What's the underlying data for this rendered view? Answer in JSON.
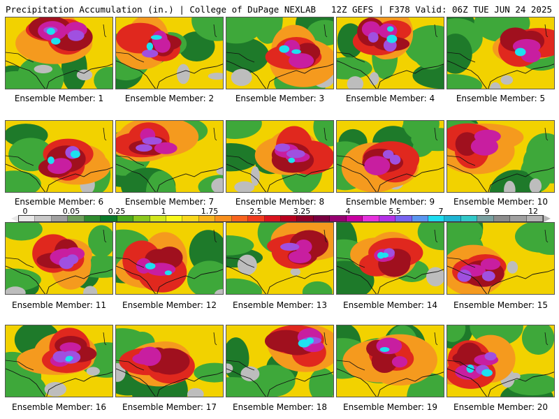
{
  "header": {
    "left": "Precipitation Accumulation (in.) | College of DuPage NEXLAB",
    "right": "12Z GEFS | F378 Valid: 06Z TUE JUN 24 2025"
  },
  "panels": [
    {
      "label": "Ensemble Member: 1"
    },
    {
      "label": "Ensemble Member: 2"
    },
    {
      "label": "Ensemble Member: 3"
    },
    {
      "label": "Ensemble Member: 4"
    },
    {
      "label": "Ensemble Member: 5"
    },
    {
      "label": "Ensemble Member: 6"
    },
    {
      "label": "Ensemble Member: 7"
    },
    {
      "label": "Ensemble Member: 8"
    },
    {
      "label": "Ensemble Member: 9"
    },
    {
      "label": "Ensemble Member: 10"
    },
    {
      "label": "Ensemble Member: 11"
    },
    {
      "label": "Ensemble Member: 12"
    },
    {
      "label": "Ensemble Member: 13"
    },
    {
      "label": "Ensemble Member: 14"
    },
    {
      "label": "Ensemble Member: 15"
    },
    {
      "label": "Ensemble Member: 16"
    },
    {
      "label": "Ensemble Member: 17"
    },
    {
      "label": "Ensemble Member: 18"
    },
    {
      "label": "Ensemble Member: 19"
    },
    {
      "label": "Ensemble Member: 20"
    }
  ],
  "colorbar": {
    "tick_labels": [
      "0",
      "0.05",
      "0.25",
      "1",
      "1.75",
      "2.5",
      "3.25",
      "4",
      "5.5",
      "7",
      "9",
      "12"
    ],
    "colors": [
      "#e8e8e8",
      "#c8c8c8",
      "#a0a0a0",
      "#6e9e5a",
      "#2e8b2e",
      "#0a7a2a",
      "#4aa81e",
      "#8cc81e",
      "#d2e61e",
      "#f8f81e",
      "#f8d81e",
      "#f8b41e",
      "#f8901e",
      "#f8641e",
      "#f03c1e",
      "#d8141e",
      "#b8001e",
      "#900028",
      "#780040",
      "#960070",
      "#c800a0",
      "#e632dc",
      "#b432e6",
      "#7864f0",
      "#5a96f0",
      "#1edcf0",
      "#1eb4d2",
      "#32c8c8",
      "#78a0a0",
      "#8c8c8c",
      "#a0a0a0",
      "#b4b4b4"
    ]
  },
  "legend_palette": {
    "gray": "#bdbdbd",
    "green_dark": "#1e7a2a",
    "green": "#3ea83a",
    "yellow": "#f2d200",
    "orange": "#f59a1e",
    "red": "#e0281e",
    "darkred": "#a0101e",
    "magenta": "#c81ea0",
    "violet": "#a050e0",
    "cyan": "#1ee0f0"
  }
}
